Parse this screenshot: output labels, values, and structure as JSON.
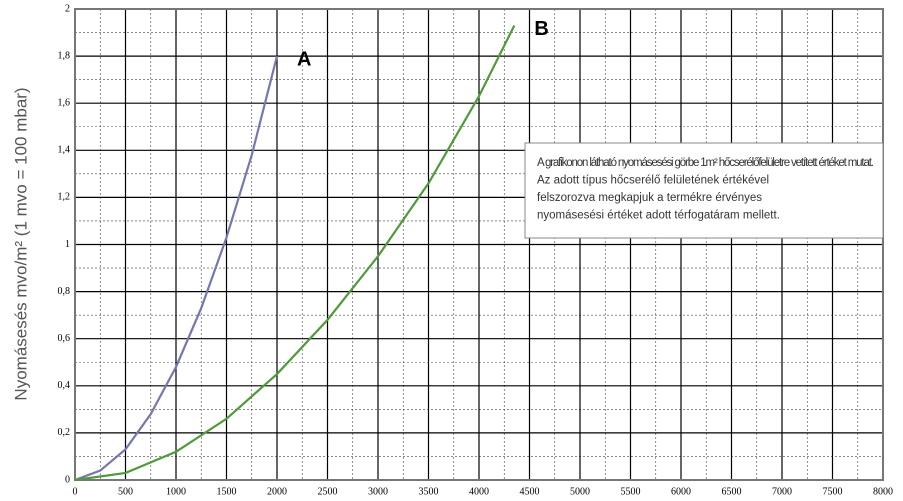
{
  "chart_data": {
    "type": "line",
    "y_label": "Nyomásesés mvo/m² (1 mvo = 100 mbar)",
    "xlim": [
      0,
      8000
    ],
    "xticks": [
      0,
      500,
      1000,
      1500,
      2000,
      2500,
      3000,
      3500,
      4000,
      4500,
      5000,
      5500,
      6000,
      6500,
      7000,
      7500,
      8000
    ],
    "ylim": [
      0,
      2
    ],
    "yticks": [
      0,
      {
        "value": 0.2,
        "label": "0,2"
      },
      {
        "value": 0.4,
        "label": "0,4"
      },
      {
        "value": 0.6,
        "label": "0,6"
      },
      {
        "value": 0.8,
        "label": "0,8"
      },
      1,
      {
        "value": 1.2,
        "label": "1,2"
      },
      {
        "value": 1.4,
        "label": "1,4"
      },
      {
        "value": 1.6,
        "label": "1,6"
      },
      {
        "value": 1.8,
        "label": "1,8"
      },
      2
    ],
    "grid": true,
    "minor_grid": true,
    "series": [
      {
        "name": "A",
        "color": "#7477b0",
        "x": [
          0,
          250,
          500,
          750,
          1000,
          1250,
          1500,
          1750,
          2000
        ],
        "values": [
          0,
          0.04,
          0.13,
          0.28,
          0.48,
          0.73,
          1.03,
          1.38,
          1.8
        ]
      },
      {
        "name": "B",
        "color": "#4f9a3a",
        "x": [
          0,
          500,
          1000,
          1500,
          2000,
          2500,
          3000,
          3500,
          4000,
          4350
        ],
        "values": [
          0,
          0.03,
          0.12,
          0.26,
          0.45,
          0.68,
          0.95,
          1.26,
          1.63,
          1.93
        ]
      }
    ],
    "annotation": [
      "A grafikonon látható nyomásesési görbe 1m² hőcserélőfelületre vetített értéket mutat.",
      "Az adott típus hőcserélő felületének értékével",
      "felszorozva megkapjuk a termékre érvényes",
      "nyomásesési értéket adott térfogatáram mellett."
    ]
  }
}
